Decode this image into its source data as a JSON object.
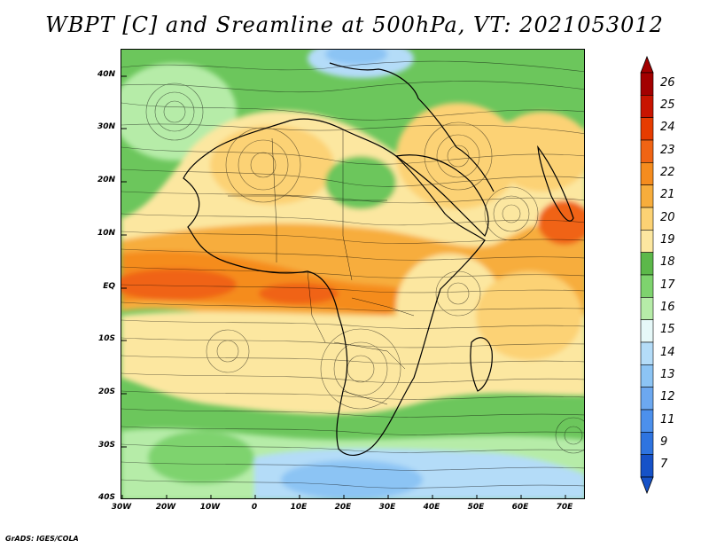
{
  "title": "WBPT [C] and Sreamline at 500hPa, VT: 2021053012",
  "credit": "GrADS: IGES/COLA",
  "y_axis_labels": [
    "40N",
    "30N",
    "20N",
    "10N",
    "EQ",
    "10S",
    "20S",
    "30S",
    "40S"
  ],
  "x_axis_labels": [
    "30W",
    "20W",
    "10W",
    "0",
    "10E",
    "20E",
    "30E",
    "40E",
    "50E",
    "60E",
    "70E"
  ],
  "colorbar": {
    "labels": [
      "26",
      "25",
      "24",
      "23",
      "22",
      "21",
      "20",
      "19",
      "18",
      "17",
      "16",
      "15",
      "14",
      "13",
      "12",
      "11",
      "9",
      "7"
    ],
    "colors": [
      "#a30000",
      "#c81400",
      "#e63c00",
      "#f06414",
      "#f58c1e",
      "#f7ad3c",
      "#fcd274",
      "#fce7a0",
      "#5cb84a",
      "#7ed36e",
      "#b6eca8",
      "#e6f8f8",
      "#b4dcf8",
      "#8cc4f4",
      "#6ca8f0",
      "#4c90ec",
      "#2e74e0",
      "#1652c8"
    ]
  },
  "map": {
    "lon_range": [
      -30,
      75
    ],
    "lat_range": [
      -40,
      45
    ],
    "field": "Wet-bulb potential temperature (C) with streamlines at 500 hPa"
  }
}
